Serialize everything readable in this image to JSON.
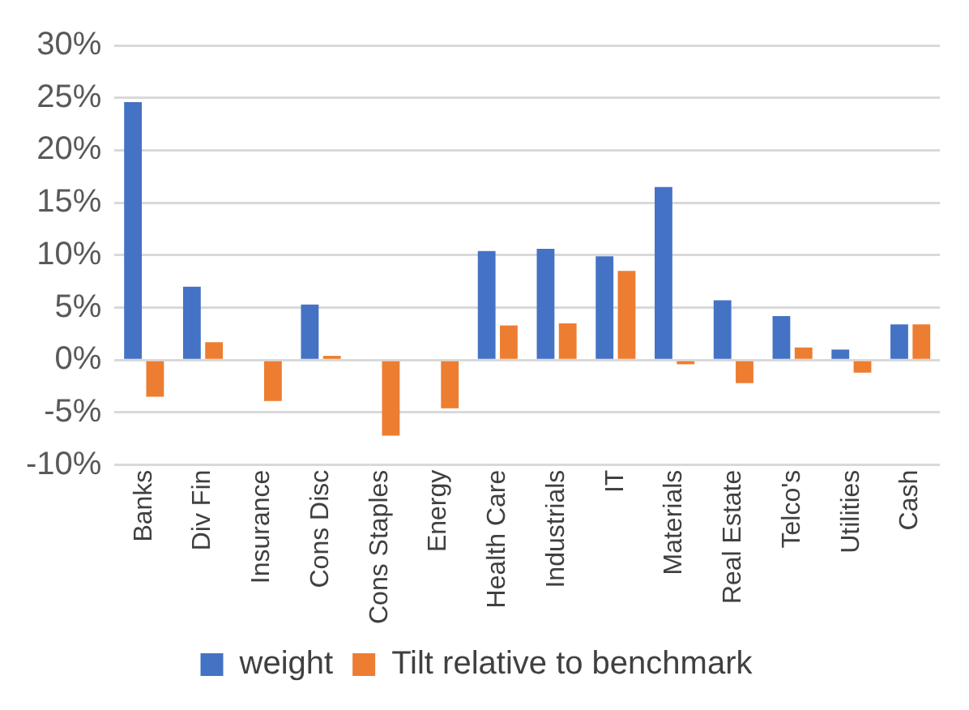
{
  "chart_data": {
    "type": "bar",
    "categories": [
      "Banks",
      "Div Fin",
      "Insurance",
      "Cons Disc",
      "Cons Staples",
      "Energy",
      "Health Care",
      "Industrials",
      "IT",
      "Materials",
      "Real Estate",
      "Telco's",
      "Utilities",
      "Cash"
    ],
    "series": [
      {
        "name": "weight",
        "color": "#4472c4",
        "values": [
          24.6,
          7.0,
          0,
          5.3,
          0,
          0,
          10.4,
          10.6,
          9.9,
          16.5,
          5.7,
          4.2,
          1.0,
          3.4
        ]
      },
      {
        "name": "Tilt relative to benchmark",
        "color": "#ed7d31",
        "values": [
          -3.5,
          1.7,
          -3.9,
          0.4,
          -7.2,
          -4.6,
          3.3,
          3.5,
          8.5,
          -0.4,
          -2.2,
          1.2,
          -1.2,
          3.4
        ]
      }
    ],
    "ylim": [
      -10,
      30
    ],
    "yticks": [
      {
        "value": -10,
        "label": "-10%"
      },
      {
        "value": -5,
        "label": "-5%"
      },
      {
        "value": 0,
        "label": "0%"
      },
      {
        "value": 5,
        "label": "5%"
      },
      {
        "value": 10,
        "label": "10%"
      },
      {
        "value": 15,
        "label": "15%"
      },
      {
        "value": 20,
        "label": "20%"
      },
      {
        "value": 25,
        "label": "25%"
      },
      {
        "value": 30,
        "label": "30%"
      }
    ],
    "grid": "y",
    "legend": "bottom"
  }
}
